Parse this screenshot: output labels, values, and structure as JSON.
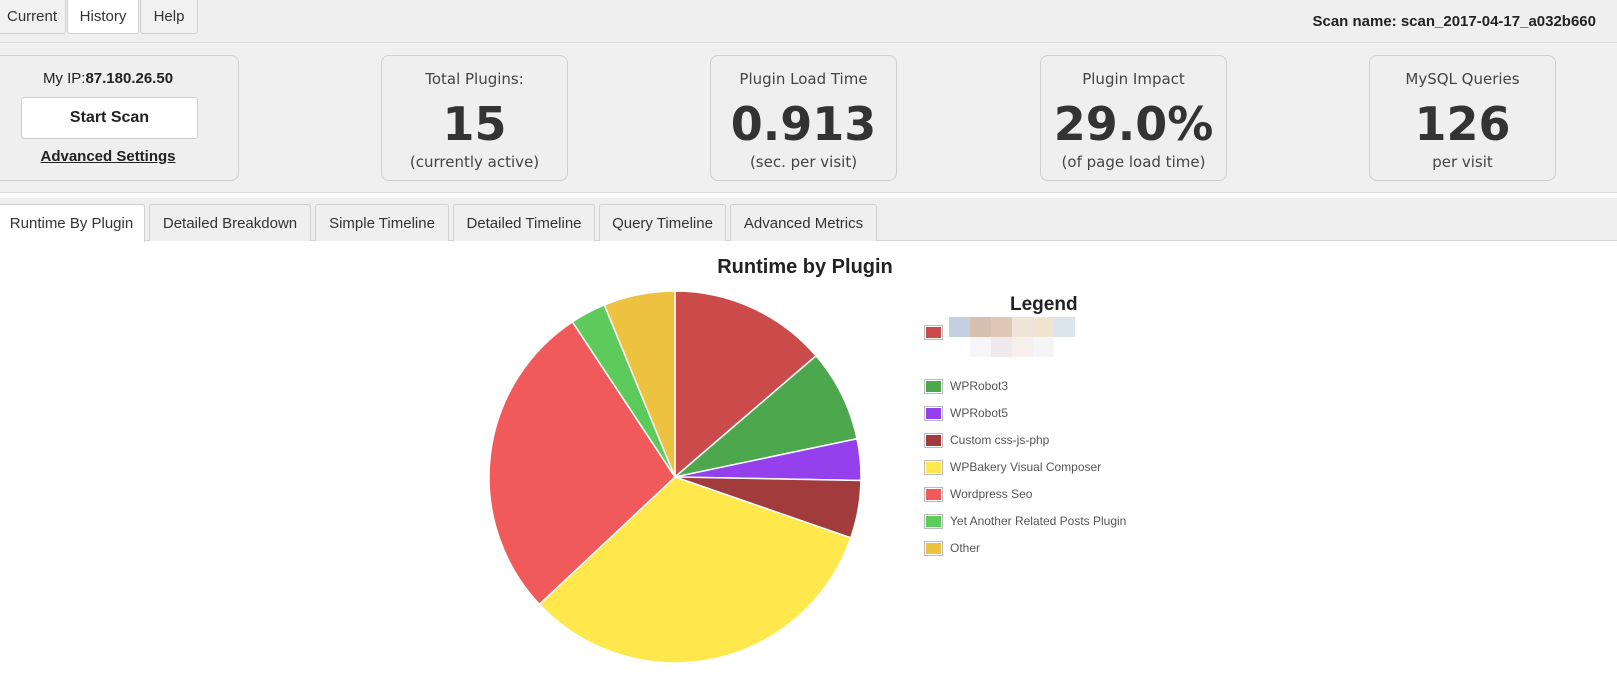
{
  "menu": {
    "items": [
      {
        "label": "Current",
        "active": false
      },
      {
        "label": "History",
        "active": true
      },
      {
        "label": "Help",
        "active": false
      }
    ],
    "scan_name": "Scan name: scan_2017-04-17_a032b660"
  },
  "scan_panel": {
    "my_ip_label": "My IP:",
    "my_ip_value": "87.180.26.50",
    "start_scan_label": "Start Scan",
    "advanced_settings_label": "Advanced Settings"
  },
  "stats": [
    {
      "label": "Total Plugins:",
      "value": "15",
      "sub": "(currently active)"
    },
    {
      "label": "Plugin Load Time",
      "value": "0.913",
      "sub": "(sec. per visit)"
    },
    {
      "label": "Plugin Impact",
      "value": "29.0%",
      "sub": "(of page load time)"
    },
    {
      "label": "MySQL Queries",
      "value": "126",
      "sub": "per visit"
    }
  ],
  "tabs": [
    {
      "label": "Runtime By Plugin",
      "active": true
    },
    {
      "label": "Detailed Breakdown",
      "active": false
    },
    {
      "label": "Simple Timeline",
      "active": false
    },
    {
      "label": "Detailed Timeline",
      "active": false
    },
    {
      "label": "Query Timeline",
      "active": false
    },
    {
      "label": "Advanced Metrics",
      "active": false
    }
  ],
  "chart_data": {
    "type": "pie",
    "title": "Runtime by Plugin",
    "legend_title": "Legend",
    "legend_position": "right",
    "slices": [
      {
        "name": "",
        "value": 13.7,
        "color": "#cb4b4b"
      },
      {
        "name": "WPRobot3",
        "value": 8.0,
        "color": "#4da74d"
      },
      {
        "name": "WPRobot5",
        "value": 3.6,
        "color": "#9440ed"
      },
      {
        "name": "Custom css-js-php",
        "value": 5.0,
        "color": "#a23c3c"
      },
      {
        "name": "WPBakery Visual Composer",
        "value": 32.7,
        "color": "#ffe84c"
      },
      {
        "name": "Wordpress Seo",
        "value": 27.7,
        "color": "#f05a5a"
      },
      {
        "name": "Yet Another Related Posts Plugin",
        "value": 3.1,
        "color": "#5ccb5c"
      },
      {
        "name": "Other",
        "value": 6.2,
        "color": "#edc240"
      }
    ]
  }
}
